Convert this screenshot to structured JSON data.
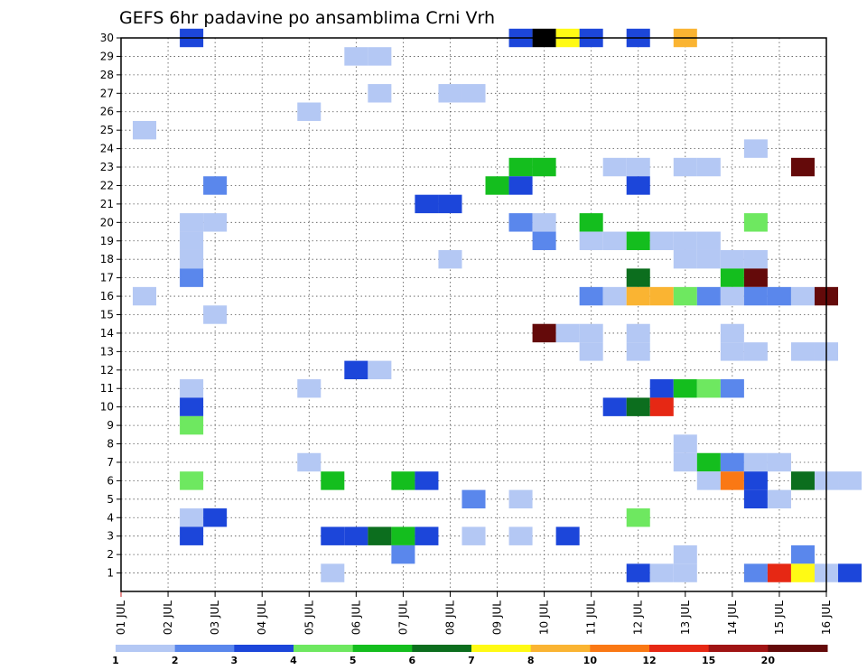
{
  "chart_data": {
    "type": "heatmap",
    "title": "GEFS 6hr padavine po ansamblima Crni Vrh",
    "xlabel": "",
    "ylabel": "",
    "x_ticks": [
      "01 JUL",
      "02 JUL",
      "03 JUL",
      "04 JUL",
      "05 JUL",
      "06 JUL",
      "07 JUL",
      "08 JUL",
      "09 JUL",
      "10 JUL",
      "11 JUL",
      "12 JUL",
      "13 JUL",
      "14 JUL",
      "15 JUL",
      "16 JUL"
    ],
    "xlim": [
      0,
      60
    ],
    "y_ticks": [
      1,
      2,
      3,
      4,
      5,
      6,
      7,
      8,
      9,
      10,
      11,
      12,
      13,
      14,
      15,
      16,
      17,
      18,
      19,
      20,
      21,
      22,
      23,
      24,
      25,
      26,
      27,
      28,
      29,
      30
    ],
    "ylim": [
      0,
      30
    ],
    "grid": true,
    "legend_levels": [
      "1",
      "2",
      "3",
      "4",
      "5",
      "6",
      "7",
      "8",
      "10",
      "12",
      "15",
      "20"
    ],
    "legend_colors": [
      "#b4c8f4",
      "#5a87ec",
      "#1c46da",
      "#6ee860",
      "#14be1e",
      "#0c6e1e",
      "#fffa14",
      "#fab432",
      "#fa7814",
      "#e62814",
      "#a01414",
      "#640a0a"
    ],
    "cells": [
      [
        3,
        30,
        2
      ],
      [
        17,
        30,
        2
      ],
      [
        18,
        30,
        13
      ],
      [
        19,
        30,
        6
      ],
      [
        20,
        30,
        2
      ],
      [
        22,
        30,
        2
      ],
      [
        24,
        30,
        7
      ],
      [
        10,
        29,
        0
      ],
      [
        11,
        29,
        0
      ],
      [
        11,
        27,
        0
      ],
      [
        14,
        27,
        0
      ],
      [
        15,
        27,
        0
      ],
      [
        8,
        26,
        0
      ],
      [
        1,
        25,
        0
      ],
      [
        27,
        24,
        0
      ],
      [
        17,
        23,
        4
      ],
      [
        18,
        23,
        4
      ],
      [
        21,
        23,
        0
      ],
      [
        22,
        23,
        0
      ],
      [
        24,
        23,
        0
      ],
      [
        25,
        23,
        0
      ],
      [
        29,
        23,
        11
      ],
      [
        4,
        22,
        1
      ],
      [
        16,
        22,
        4
      ],
      [
        17,
        22,
        2
      ],
      [
        22,
        22,
        2
      ],
      [
        13,
        21,
        2
      ],
      [
        14,
        21,
        2
      ],
      [
        3,
        20,
        0
      ],
      [
        4,
        20,
        0
      ],
      [
        17,
        20,
        1
      ],
      [
        18,
        20,
        0
      ],
      [
        20,
        20,
        4
      ],
      [
        27,
        20,
        3
      ],
      [
        3,
        19,
        0
      ],
      [
        18,
        19,
        1
      ],
      [
        20,
        19,
        0
      ],
      [
        21,
        19,
        0
      ],
      [
        22,
        19,
        4
      ],
      [
        23,
        19,
        0
      ],
      [
        24,
        19,
        0
      ],
      [
        25,
        19,
        0
      ],
      [
        3,
        18,
        0
      ],
      [
        14,
        18,
        0
      ],
      [
        24,
        18,
        0
      ],
      [
        25,
        18,
        0
      ],
      [
        26,
        18,
        0
      ],
      [
        27,
        18,
        0
      ],
      [
        3,
        17,
        1
      ],
      [
        22,
        17,
        5
      ],
      [
        26,
        17,
        4
      ],
      [
        27,
        17,
        11
      ],
      [
        1,
        16,
        0
      ],
      [
        20,
        16,
        1
      ],
      [
        21,
        16,
        0
      ],
      [
        22,
        16,
        7
      ],
      [
        23,
        16,
        7
      ],
      [
        24,
        16,
        3
      ],
      [
        25,
        16,
        1
      ],
      [
        26,
        16,
        0
      ],
      [
        27,
        16,
        1
      ],
      [
        28,
        16,
        1
      ],
      [
        29,
        16,
        0
      ],
      [
        30,
        16,
        11
      ],
      [
        4,
        15,
        0
      ],
      [
        18,
        14,
        11
      ],
      [
        19,
        14,
        0
      ],
      [
        20,
        14,
        0
      ],
      [
        22,
        14,
        0
      ],
      [
        26,
        14,
        0
      ],
      [
        20,
        13,
        0
      ],
      [
        22,
        13,
        0
      ],
      [
        26,
        13,
        0
      ],
      [
        27,
        13,
        0
      ],
      [
        29,
        13,
        0
      ],
      [
        30,
        13,
        0
      ],
      [
        10,
        12,
        2
      ],
      [
        11,
        12,
        0
      ],
      [
        3,
        11,
        0
      ],
      [
        8,
        11,
        0
      ],
      [
        23,
        11,
        2
      ],
      [
        24,
        11,
        4
      ],
      [
        25,
        11,
        3
      ],
      [
        26,
        11,
        1
      ],
      [
        3,
        10,
        2
      ],
      [
        21,
        10,
        2
      ],
      [
        22,
        10,
        5
      ],
      [
        23,
        10,
        9
      ],
      [
        3,
        9,
        3
      ],
      [
        24,
        8,
        0
      ],
      [
        8,
        7,
        0
      ],
      [
        24,
        7,
        0
      ],
      [
        25,
        7,
        4
      ],
      [
        26,
        7,
        1
      ],
      [
        27,
        7,
        0
      ],
      [
        28,
        7,
        0
      ],
      [
        3,
        6,
        3
      ],
      [
        9,
        6,
        4
      ],
      [
        12,
        6,
        4
      ],
      [
        13,
        6,
        2
      ],
      [
        25,
        6,
        0
      ],
      [
        26,
        6,
        8
      ],
      [
        27,
        6,
        2
      ],
      [
        29,
        6,
        5
      ],
      [
        30,
        6,
        0
      ],
      [
        31,
        6,
        0
      ],
      [
        15,
        5,
        1
      ],
      [
        17,
        5,
        0
      ],
      [
        27,
        5,
        2
      ],
      [
        28,
        5,
        0
      ],
      [
        3,
        4,
        0
      ],
      [
        4,
        4,
        2
      ],
      [
        22,
        4,
        3
      ],
      [
        3,
        3,
        2
      ],
      [
        9,
        3,
        2
      ],
      [
        10,
        3,
        2
      ],
      [
        11,
        3,
        5
      ],
      [
        12,
        3,
        4
      ],
      [
        13,
        3,
        2
      ],
      [
        15,
        3,
        0
      ],
      [
        17,
        3,
        0
      ],
      [
        19,
        3,
        2
      ],
      [
        12,
        2,
        1
      ],
      [
        24,
        2,
        0
      ],
      [
        29,
        2,
        1
      ],
      [
        9,
        1,
        0
      ],
      [
        22,
        1,
        2
      ],
      [
        23,
        1,
        0
      ],
      [
        24,
        1,
        0
      ],
      [
        27,
        1,
        1
      ],
      [
        28,
        1,
        9
      ],
      [
        29,
        1,
        6
      ],
      [
        30,
        1,
        0
      ],
      [
        31,
        1,
        2
      ]
    ]
  }
}
